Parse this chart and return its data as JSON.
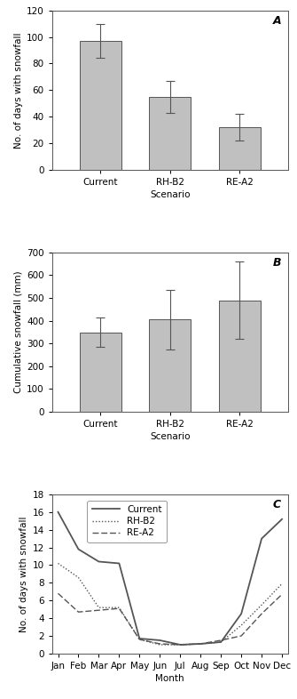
{
  "panel_A": {
    "categories": [
      "Current",
      "RH-B2",
      "RE-A2"
    ],
    "values": [
      97,
      55,
      32
    ],
    "errors": [
      13,
      12,
      10
    ],
    "ylabel": "No. of days with snowfall",
    "xlabel": "Scenario",
    "ylim": [
      0,
      120
    ],
    "yticks": [
      0,
      20,
      40,
      60,
      80,
      100,
      120
    ],
    "label": "A"
  },
  "panel_B": {
    "categories": [
      "Current",
      "RH-B2",
      "RE-A2"
    ],
    "values": [
      348,
      405,
      490
    ],
    "errors": [
      65,
      130,
      170
    ],
    "ylabel": "Cumulative snowfall (mm)",
    "xlabel": "Scenario",
    "ylim": [
      0,
      700
    ],
    "yticks": [
      0,
      100,
      200,
      300,
      400,
      500,
      600,
      700
    ],
    "label": "B"
  },
  "panel_C": {
    "months": [
      "Jan",
      "Feb",
      "Mar",
      "Apr",
      "May",
      "Jun",
      "Jul",
      "Aug",
      "Sep",
      "Oct",
      "Nov",
      "Dec"
    ],
    "current": [
      16.0,
      11.8,
      10.4,
      10.2,
      1.7,
      1.5,
      1.0,
      1.1,
      1.3,
      4.5,
      13.0,
      15.2
    ],
    "rhb2": [
      10.2,
      8.6,
      5.2,
      5.2,
      1.6,
      1.0,
      1.0,
      1.1,
      1.3,
      3.2,
      5.5,
      7.9
    ],
    "rea2": [
      6.8,
      4.7,
      4.9,
      5.1,
      1.6,
      1.1,
      1.0,
      1.1,
      1.5,
      2.0,
      4.5,
      6.7
    ],
    "ylabel": "No. of days with snowfall",
    "xlabel": "Month",
    "ylim": [
      0,
      18
    ],
    "yticks": [
      0,
      2,
      4,
      6,
      8,
      10,
      12,
      14,
      16,
      18
    ],
    "label": "C",
    "legend": [
      "Current",
      "RH-B2",
      "RE-A2"
    ]
  },
  "bar_color": "#C0C0C0",
  "bar_edgecolor": "#555555",
  "line_color": "#555555",
  "bg_color": "#ffffff",
  "fontsize": 7.5,
  "label_fontsize": 9
}
